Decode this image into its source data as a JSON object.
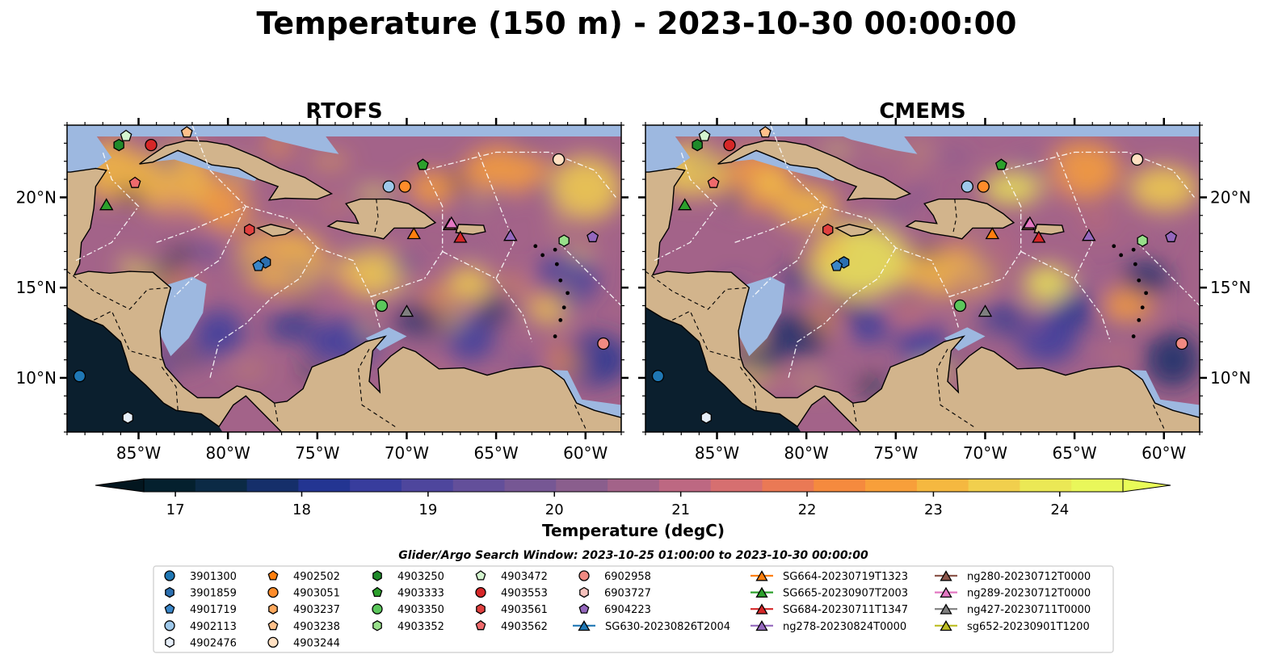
{
  "figure": {
    "title": "Temperature (150 m) - 2023-10-30 00:00:00"
  },
  "panels": [
    {
      "id": "rtofs",
      "title": "RTOFS"
    },
    {
      "id": "cmems",
      "title": "CMEMS"
    }
  ],
  "map": {
    "lon_range": [
      -89,
      -58
    ],
    "lat_range": [
      7,
      24
    ],
    "lon_ticks": [
      {
        "value": -85,
        "label": "85°W"
      },
      {
        "value": -80,
        "label": "80°W"
      },
      {
        "value": -75,
        "label": "75°W"
      },
      {
        "value": -70,
        "label": "70°W"
      },
      {
        "value": -65,
        "label": "65°W"
      },
      {
        "value": -60,
        "label": "60°W"
      }
    ],
    "lat_ticks": [
      {
        "value": 10,
        "label": "10°N"
      },
      {
        "value": 15,
        "label": "15°N"
      },
      {
        "value": 20,
        "label": "20°N"
      }
    ],
    "colors": {
      "land": "#d2b48c",
      "shelf": "#9db8e0",
      "deep": "#0b1f2e",
      "eez_line": "#ffffff",
      "coast": "#000000"
    }
  },
  "colorbar": {
    "label": "Temperature (degC)",
    "min": 16.75,
    "max": 24.5,
    "ticks": [
      17,
      18,
      19,
      20,
      21,
      22,
      23,
      24
    ],
    "palette": [
      "#04202e",
      "#0b2a45",
      "#152f6a",
      "#233592",
      "#383d9d",
      "#4e469d",
      "#634f9a",
      "#765794",
      "#8a5e8d",
      "#a36389",
      "#bd6882",
      "#d66f70",
      "#ea7955",
      "#f58a3e",
      "#f89f3a",
      "#f5b840",
      "#f1cf4d",
      "#ebe855",
      "#e9f75a"
    ]
  },
  "legend": {
    "caption": "Glider/Argo Search Window: 2023-10-25 01:00:00 to 2023-10-30 00:00:00",
    "columns": [
      [
        {
          "label": "3901300",
          "shape": "circle",
          "color": "#1f77b4"
        },
        {
          "label": "3901859",
          "shape": "hexagon",
          "color": "#2b6fb0"
        },
        {
          "label": "4901719",
          "shape": "pentagon",
          "color": "#3a86c8"
        },
        {
          "label": "4902113",
          "shape": "circle",
          "color": "#9ec8ea"
        },
        {
          "label": "4902476",
          "shape": "hexagon",
          "color": "#e6eef8"
        }
      ],
      [
        {
          "label": "4902502",
          "shape": "pentagon",
          "color": "#ff7f0e"
        },
        {
          "label": "4903051",
          "shape": "circle",
          "color": "#ff8c2a"
        },
        {
          "label": "4903237",
          "shape": "hexagon",
          "color": "#ffa95e"
        },
        {
          "label": "4903238",
          "shape": "pentagon",
          "color": "#ffc08a"
        },
        {
          "label": "4903244",
          "shape": "circle",
          "color": "#ffe0c2"
        }
      ],
      [
        {
          "label": "4903250",
          "shape": "hexagon",
          "color": "#1f8a2a"
        },
        {
          "label": "4903333",
          "shape": "pentagon",
          "color": "#2ca02c"
        },
        {
          "label": "4903350",
          "shape": "circle",
          "color": "#5bc75b"
        },
        {
          "label": "4903352",
          "shape": "hexagon",
          "color": "#98df8a"
        }
      ],
      [
        {
          "label": "4903472",
          "shape": "pentagon",
          "color": "#d4f5cf"
        },
        {
          "label": "4903553",
          "shape": "circle",
          "color": "#d62728"
        },
        {
          "label": "4903561",
          "shape": "hexagon",
          "color": "#e0403f"
        },
        {
          "label": "4903562",
          "shape": "pentagon",
          "color": "#ef6a6c"
        }
      ],
      [
        {
          "label": "6902958",
          "shape": "circle",
          "color": "#f08a82"
        },
        {
          "label": "6903727",
          "shape": "hexagon",
          "color": "#f7c2bd"
        },
        {
          "label": "6904223",
          "shape": "pentagon",
          "color": "#9467bd"
        },
        {
          "label": "SG630-20230826T2004",
          "shape": "triangle",
          "color": "#1f77b4",
          "line": true
        }
      ],
      [
        {
          "label": "SG664-20230719T1323",
          "shape": "triangle",
          "color": "#ff7f0e",
          "line": true
        },
        {
          "label": "SG665-20230907T2003",
          "shape": "triangle",
          "color": "#2ca02c",
          "line": true
        },
        {
          "label": "SG684-20230711T1347",
          "shape": "triangle",
          "color": "#d62728",
          "line": true
        },
        {
          "label": "ng278-20230824T0000",
          "shape": "triangle",
          "color": "#9467bd",
          "line": true
        }
      ],
      [
        {
          "label": "ng280-20230712T0000",
          "shape": "triangle",
          "color": "#8c564b",
          "line": true
        },
        {
          "label": "ng289-20230712T0000",
          "shape": "triangle",
          "color": "#e377c2",
          "line": true
        },
        {
          "label": "ng427-20230711T0000",
          "shape": "triangle",
          "color": "#7f7f7f",
          "line": true
        },
        {
          "label": "sg652-20230901T1200",
          "shape": "triangle",
          "color": "#bcbd22",
          "line": true
        }
      ]
    ]
  },
  "platforms": [
    {
      "id": "3901300",
      "shape": "circle",
      "color": "#1f77b4",
      "lon": -88.3,
      "lat": 10.1
    },
    {
      "id": "4902476",
      "shape": "hexagon",
      "color": "#e6eef8",
      "lon": -85.6,
      "lat": 7.8
    },
    {
      "id": "3901859",
      "shape": "hexagon",
      "color": "#2b6fb0",
      "lon": -77.9,
      "lat": 16.4
    },
    {
      "id": "4901719",
      "shape": "pentagon",
      "color": "#3a86c8",
      "lon": -78.3,
      "lat": 16.2
    },
    {
      "id": "4902113",
      "shape": "circle",
      "color": "#9ec8ea",
      "lon": -71.0,
      "lat": 20.6
    },
    {
      "id": "4903051",
      "shape": "circle",
      "color": "#ff8c2a",
      "lon": -70.1,
      "lat": 20.6
    },
    {
      "id": "4903238",
      "shape": "pentagon",
      "color": "#ffc08a",
      "lon": -82.3,
      "lat": 23.6
    },
    {
      "id": "4903244",
      "shape": "circle",
      "color": "#ffe0c2",
      "lon": -61.5,
      "lat": 22.1
    },
    {
      "id": "4903250",
      "shape": "hexagon",
      "color": "#1f8a2a",
      "lon": -86.1,
      "lat": 22.9
    },
    {
      "id": "4903333",
      "shape": "pentagon",
      "color": "#2ca02c",
      "lon": -69.1,
      "lat": 21.8
    },
    {
      "id": "4903350",
      "shape": "circle",
      "color": "#5bc75b",
      "lon": -71.4,
      "lat": 14.0
    },
    {
      "id": "4903352",
      "shape": "hexagon",
      "color": "#98df8a",
      "lon": -61.2,
      "lat": 17.6
    },
    {
      "id": "4903472",
      "shape": "pentagon",
      "color": "#d4f5cf",
      "lon": -85.7,
      "lat": 23.4
    },
    {
      "id": "4903553",
      "shape": "circle",
      "color": "#d62728",
      "lon": -84.3,
      "lat": 22.9
    },
    {
      "id": "4903561",
      "shape": "hexagon",
      "color": "#e0403f",
      "lon": -78.8,
      "lat": 18.2
    },
    {
      "id": "4903562",
      "shape": "pentagon",
      "color": "#ef6a6c",
      "lon": -85.2,
      "lat": 20.8
    },
    {
      "id": "6902958",
      "shape": "circle",
      "color": "#f08a82",
      "lon": -59.0,
      "lat": 11.9
    },
    {
      "id": "6904223",
      "shape": "pentagon",
      "color": "#9467bd",
      "lon": -59.6,
      "lat": 17.8
    },
    {
      "id": "SG664-20230719T1323",
      "shape": "triangle",
      "color": "#ff7f0e",
      "lon": -69.6,
      "lat": 18.0
    },
    {
      "id": "SG665-20230907T2003",
      "shape": "triangle",
      "color": "#2ca02c",
      "lon": -86.8,
      "lat": 19.6
    },
    {
      "id": "SG684-20230711T1347",
      "shape": "triangle",
      "color": "#d62728",
      "lon": -67.0,
      "lat": 17.8
    },
    {
      "id": "ng278-20230824T0000",
      "shape": "triangle",
      "color": "#9467bd",
      "lon": -64.2,
      "lat": 17.9
    },
    {
      "id": "ng280-20230712T0000",
      "shape": "triangle",
      "color": "#8c564b",
      "lon": -67.6,
      "lat": 18.5
    },
    {
      "id": "ng289-20230712T0000",
      "shape": "triangle",
      "color": "#e377c2",
      "lon": -67.5,
      "lat": 18.6
    },
    {
      "id": "ng427-20230711T0000",
      "shape": "triangle",
      "color": "#7f7f7f",
      "lon": -70.0,
      "lat": 13.7
    }
  ],
  "land": {
    "central_america": [
      [
        -89,
        13.9
      ],
      [
        -88,
        13.3
      ],
      [
        -87,
        12.9
      ],
      [
        -86,
        12.0
      ],
      [
        -85.7,
        11.1
      ],
      [
        -85.5,
        10.4
      ],
      [
        -84.6,
        9.6
      ],
      [
        -83.6,
        8.6
      ],
      [
        -82.9,
        8.2
      ],
      [
        -81.5,
        8.0
      ],
      [
        -80.5,
        7.3
      ],
      [
        -79.7,
        8.5
      ],
      [
        -79,
        9.0
      ],
      [
        -77.9,
        7.9
      ],
      [
        -77,
        7
      ],
      [
        -75,
        7
      ],
      [
        -73,
        7
      ],
      [
        -70,
        7
      ],
      [
        -66,
        7
      ],
      [
        -62,
        7
      ],
      [
        -58,
        7
      ],
      [
        -58,
        7.8
      ],
      [
        -59.5,
        8.2
      ],
      [
        -60.5,
        8.6
      ],
      [
        -61.2,
        9.9
      ],
      [
        -62,
        10.5
      ],
      [
        -62.5,
        10.65
      ],
      [
        -64.2,
        10.5
      ],
      [
        -65.5,
        10.15
      ],
      [
        -66.8,
        10.55
      ],
      [
        -68.2,
        10.5
      ],
      [
        -69.5,
        11.45
      ],
      [
        -70.2,
        11.7
      ],
      [
        -70.9,
        11.2
      ],
      [
        -71.6,
        10.5
      ],
      [
        -71.5,
        9.2
      ],
      [
        -72.1,
        9.8
      ],
      [
        -71.9,
        11.5
      ],
      [
        -71.2,
        12.3
      ],
      [
        -72.3,
        12.0
      ],
      [
        -73.5,
        11.3
      ],
      [
        -74.3,
        11.0
      ],
      [
        -75.3,
        10.6
      ],
      [
        -75.8,
        9.4
      ],
      [
        -76.7,
        8.7
      ],
      [
        -77.4,
        8.6
      ],
      [
        -78.2,
        9.2
      ],
      [
        -79.5,
        9.55
      ],
      [
        -80.5,
        8.9
      ],
      [
        -81.7,
        8.9
      ],
      [
        -82.5,
        9.5
      ],
      [
        -83.5,
        10.6
      ],
      [
        -83.7,
        11.2
      ],
      [
        -83.8,
        12.6
      ],
      [
        -83.5,
        13.9
      ],
      [
        -83.2,
        15.0
      ],
      [
        -84.2,
        15.85
      ],
      [
        -85.5,
        15.9
      ],
      [
        -86.6,
        15.8
      ],
      [
        -87.8,
        15.9
      ],
      [
        -88.6,
        15.7
      ],
      [
        -88.3,
        16.3
      ],
      [
        -88.2,
        17.5
      ],
      [
        -87.7,
        18.3
      ],
      [
        -87.5,
        19.4
      ],
      [
        -87.4,
        20.6
      ],
      [
        -86.8,
        21.5
      ],
      [
        -87.4,
        21.6
      ],
      [
        -88.8,
        21.4
      ],
      [
        -89,
        21.4
      ]
    ],
    "cuba": [
      [
        -84.95,
        21.85
      ],
      [
        -84.4,
        22.25
      ],
      [
        -83.5,
        22.85
      ],
      [
        -82.3,
        23.15
      ],
      [
        -81.2,
        23.1
      ],
      [
        -80.0,
        22.9
      ],
      [
        -78.3,
        22.2
      ],
      [
        -77.1,
        21.6
      ],
      [
        -75.7,
        21.1
      ],
      [
        -74.2,
        20.2
      ],
      [
        -75.0,
        19.9
      ],
      [
        -76.8,
        19.95
      ],
      [
        -77.7,
        19.85
      ],
      [
        -77.2,
        20.6
      ],
      [
        -78.3,
        21.0
      ],
      [
        -79.4,
        21.6
      ],
      [
        -80.9,
        21.8
      ],
      [
        -81.8,
        22.2
      ],
      [
        -82.8,
        22.6
      ],
      [
        -84.2,
        21.95
      ]
    ],
    "hispaniola": [
      [
        -74.4,
        18.4
      ],
      [
        -73.0,
        18.0
      ],
      [
        -71.7,
        17.8
      ],
      [
        -71.3,
        17.7
      ],
      [
        -70.7,
        18.3
      ],
      [
        -69.0,
        18.3
      ],
      [
        -68.4,
        18.6
      ],
      [
        -69.0,
        19.1
      ],
      [
        -69.9,
        19.65
      ],
      [
        -71.0,
        19.9
      ],
      [
        -72.6,
        19.9
      ],
      [
        -73.4,
        19.65
      ],
      [
        -72.9,
        19.0
      ],
      [
        -72.7,
        18.55
      ],
      [
        -73.9,
        18.7
      ]
    ],
    "jamaica": [
      [
        -78.35,
        18.3
      ],
      [
        -77.6,
        18.5
      ],
      [
        -76.35,
        18.2
      ],
      [
        -76.8,
        17.95
      ],
      [
        -77.5,
        17.85
      ]
    ],
    "puerto_rico": [
      [
        -67.25,
        18.05
      ],
      [
        -66.3,
        17.95
      ],
      [
        -65.6,
        18.1
      ],
      [
        -65.7,
        18.45
      ],
      [
        -67.1,
        18.5
      ]
    ]
  }
}
